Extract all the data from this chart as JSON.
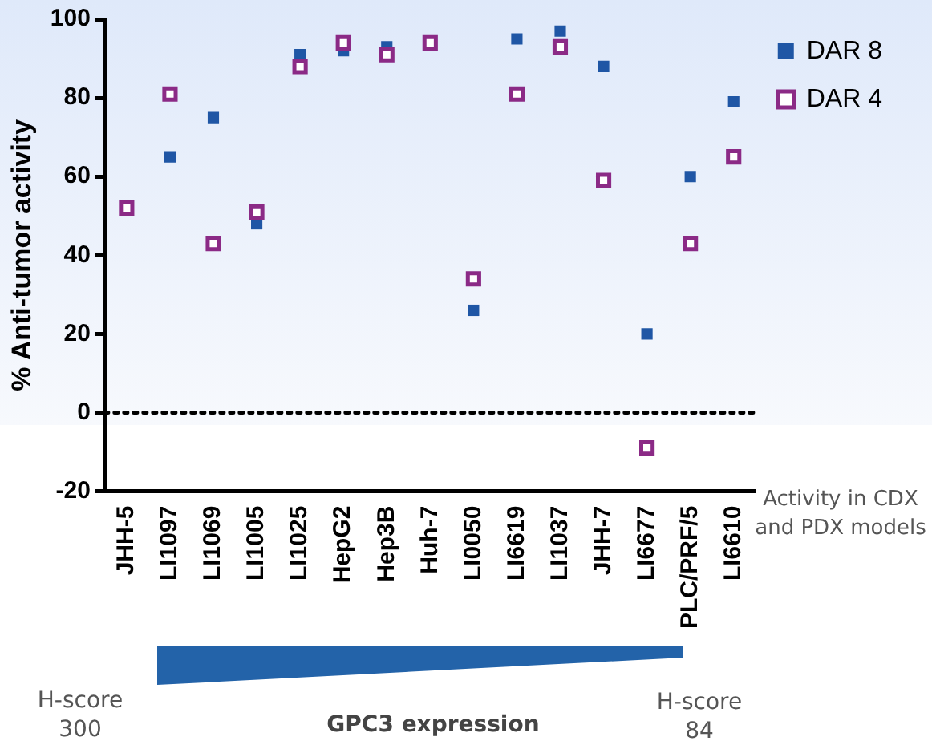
{
  "chart_data": {
    "type": "scatter",
    "ylabel": "% Anti-tumor activity",
    "categories": [
      "JHH-5",
      "LI1097",
      "LI1069",
      "LI1005",
      "LI1025",
      "HepG2",
      "Hep3B",
      "Huh-7",
      "LI0050",
      "LI6619",
      "LI1037",
      "JHH-7",
      "LI6677",
      "PLC/PRF/5",
      "LI6610"
    ],
    "series": [
      {
        "name": "DAR 8",
        "color": "#1f56a5",
        "values": [
          null,
          65,
          75,
          48,
          91,
          92,
          93,
          null,
          26,
          95,
          97,
          88,
          20,
          60,
          79
        ]
      },
      {
        "name": "DAR 4",
        "color": "#8b2a86",
        "values": [
          52,
          81,
          43,
          51,
          88,
          94,
          91,
          94,
          34,
          81,
          93,
          59,
          -9,
          43,
          65
        ]
      }
    ],
    "ylim": [
      -20,
      100
    ],
    "yticks": [
      -20,
      0,
      20,
      40,
      60,
      80,
      100
    ],
    "grid": false,
    "legend": "top right",
    "marker": "square",
    "ref_lines": [
      {
        "axis": "y",
        "value": 0,
        "line_style": "dotted",
        "color": "#000000"
      }
    ],
    "annotations": [
      "Activity in CDX and PDX models",
      "H-score 300",
      "GPC3 expression",
      "H-score 84"
    ]
  }
}
